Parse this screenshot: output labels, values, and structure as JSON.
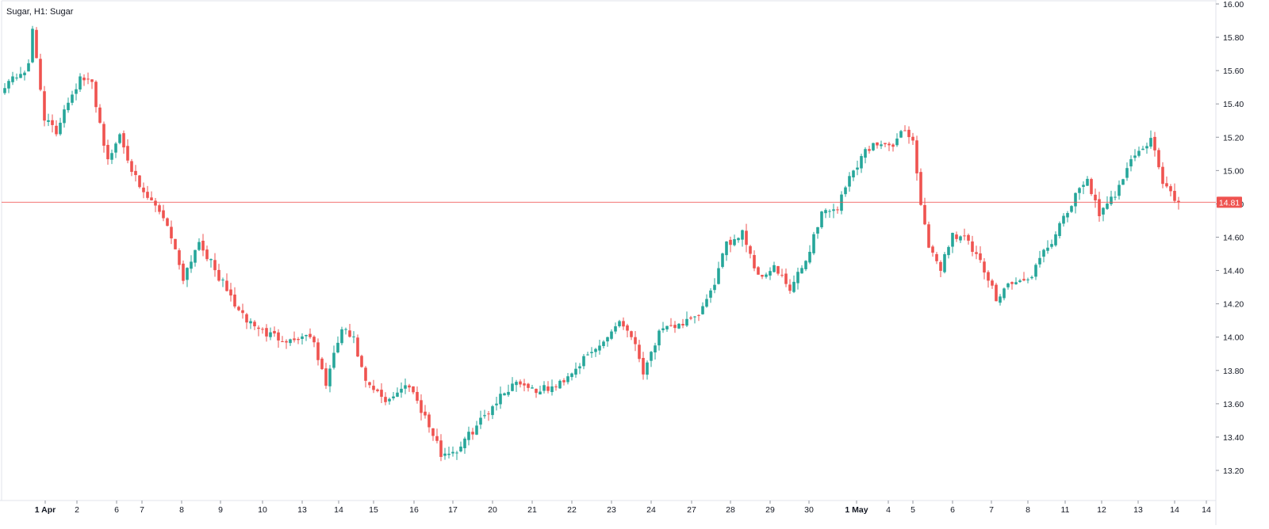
{
  "title": "Sugar, H1: Sugar",
  "colors": {
    "up": "#26a69a",
    "down": "#ef5350",
    "price_line": "#ef5350",
    "axis_text": "#131722",
    "frame": "#e0e3eb",
    "background": "#ffffff"
  },
  "chart_data": {
    "type": "candlestick",
    "title": "Sugar, H1: Sugar",
    "xlabel": "",
    "ylabel": "",
    "ylim": [
      13.2,
      16.0
    ],
    "yticks": [
      "16.00",
      "15.80",
      "15.60",
      "15.40",
      "15.20",
      "15.00",
      "14.80",
      "14.60",
      "14.40",
      "14.20",
      "14.00",
      "13.80",
      "13.60",
      "13.40",
      "13.20"
    ],
    "grid": false,
    "last_price": "14.81",
    "x_tick_labels": [
      "1 Apr",
      "2",
      "6",
      "7",
      "8",
      "9",
      "10",
      "13",
      "14",
      "15",
      "16",
      "17",
      "20",
      "21",
      "22",
      "23",
      "24",
      "27",
      "28",
      "29",
      "30",
      "1 May",
      "4",
      "5",
      "6",
      "7",
      "8",
      "11",
      "12",
      "13",
      "14",
      "14"
    ],
    "x_tick_bold": [
      "1 Apr",
      "1 May"
    ],
    "anchors": [
      [
        0,
        15.52
      ],
      [
        6,
        15.62
      ],
      [
        7,
        15.85
      ],
      [
        10,
        15.32
      ],
      [
        13,
        15.22
      ],
      [
        15,
        15.38
      ],
      [
        19,
        15.55
      ],
      [
        22,
        15.52
      ],
      [
        26,
        15.05
      ],
      [
        29,
        15.22
      ],
      [
        34,
        14.88
      ],
      [
        39,
        14.76
      ],
      [
        41,
        14.68
      ],
      [
        45,
        14.36
      ],
      [
        49,
        14.58
      ],
      [
        53,
        14.4
      ],
      [
        60,
        14.12
      ],
      [
        66,
        14.02
      ],
      [
        72,
        13.98
      ],
      [
        77,
        14.02
      ],
      [
        81,
        13.72
      ],
      [
        85,
        14.05
      ],
      [
        88,
        13.98
      ],
      [
        91,
        13.72
      ],
      [
        96,
        13.62
      ],
      [
        102,
        13.72
      ],
      [
        106,
        13.52
      ],
      [
        110,
        13.3
      ],
      [
        114,
        13.32
      ],
      [
        120,
        13.5
      ],
      [
        124,
        13.62
      ],
      [
        129,
        13.74
      ],
      [
        134,
        13.68
      ],
      [
        139,
        13.7
      ],
      [
        144,
        13.82
      ],
      [
        150,
        13.95
      ],
      [
        155,
        14.1
      ],
      [
        158,
        14.02
      ],
      [
        161,
        13.8
      ],
      [
        165,
        14.02
      ],
      [
        170,
        14.08
      ],
      [
        174,
        14.1
      ],
      [
        178,
        14.26
      ],
      [
        182,
        14.55
      ],
      [
        186,
        14.64
      ],
      [
        190,
        14.36
      ],
      [
        194,
        14.42
      ],
      [
        198,
        14.28
      ],
      [
        202,
        14.46
      ],
      [
        206,
        14.75
      ],
      [
        210,
        14.78
      ],
      [
        213,
        14.96
      ],
      [
        217,
        15.12
      ],
      [
        221,
        15.18
      ],
      [
        224,
        15.12
      ],
      [
        226,
        15.26
      ],
      [
        229,
        15.18
      ],
      [
        231,
        14.8
      ],
      [
        233,
        14.52
      ],
      [
        236,
        14.42
      ],
      [
        239,
        14.62
      ],
      [
        242,
        14.6
      ],
      [
        246,
        14.44
      ],
      [
        250,
        14.24
      ],
      [
        253,
        14.32
      ],
      [
        258,
        14.34
      ],
      [
        262,
        14.5
      ],
      [
        266,
        14.66
      ],
      [
        270,
        14.84
      ],
      [
        273,
        14.96
      ],
      [
        276,
        14.72
      ],
      [
        280,
        14.86
      ],
      [
        284,
        15.08
      ],
      [
        287,
        15.12
      ],
      [
        289,
        15.2
      ],
      [
        292,
        14.92
      ],
      [
        296,
        14.8
      ]
    ]
  }
}
